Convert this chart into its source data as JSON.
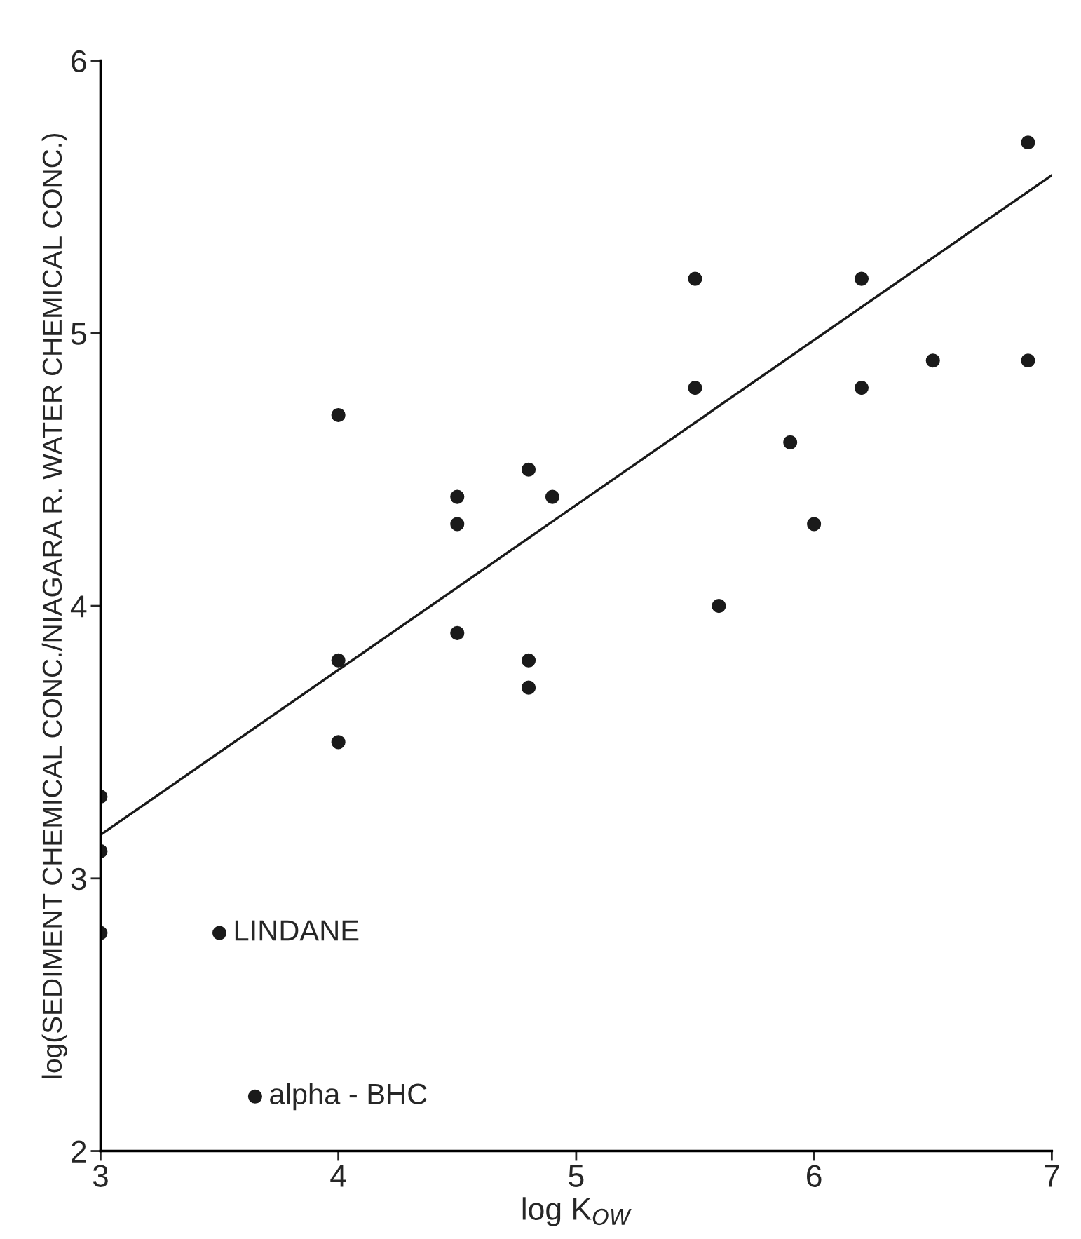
{
  "chart_data": {
    "type": "scatter",
    "xlabel": "log K$_{OW}$",
    "ylabel": "log(SEDIMENT CHEMICAL CONC./NIAGARA R. WATER CHEMICAL CONC.)",
    "xlim": [
      3,
      7
    ],
    "ylim": [
      2,
      6
    ],
    "xticks": [
      3,
      4,
      5,
      6,
      7
    ],
    "yticks": [
      2,
      3,
      4,
      5,
      6
    ],
    "grid": false,
    "marker": "circle",
    "series": [
      {
        "color": "#1a1a1a",
        "x": [
          3,
          3,
          3,
          3.5,
          3.65,
          4,
          4,
          4,
          4.5,
          4.5,
          4.5,
          4.8,
          4.8,
          4.8,
          4.9,
          5.5,
          5.5,
          5.6,
          5.9,
          6,
          6.2,
          6.2,
          6.5,
          6.9,
          6.9
        ],
        "values": [
          3.3,
          3.1,
          2.8,
          2.8,
          2.2,
          4.7,
          3.8,
          3.5,
          4.4,
          4.3,
          3.9,
          4.5,
          3.8,
          3.7,
          4.4,
          5.2,
          4.8,
          4.0,
          4.6,
          4.3,
          5.2,
          4.8,
          4.9,
          5.7,
          4.9
        ]
      },
      {
        "type": "line",
        "color": "#1a1a1a",
        "marker": "none",
        "x": [
          3,
          7
        ],
        "values": [
          3.16,
          5.58
        ]
      }
    ],
    "annotations": [
      {
        "text": "LINDANE",
        "x": 3.5,
        "y": 2.8
      },
      {
        "text": "alpha - BHC",
        "x": 3.65,
        "y": 2.2
      }
    ]
  }
}
